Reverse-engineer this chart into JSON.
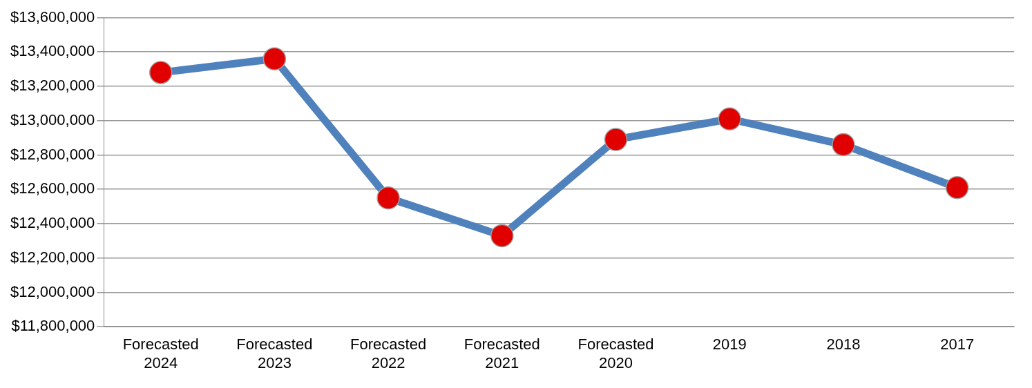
{
  "chart_data": {
    "type": "line",
    "categories": [
      "Forecasted 2024",
      "Forecasted 2023",
      "Forecasted 2022",
      "Forecasted 2021",
      "Forecasted 2020",
      "2019",
      "2018",
      "2017"
    ],
    "series": [
      {
        "color": "#4f81bd",
        "colors": [
          "#e00000",
          "#e00000",
          "#e00000",
          "#e00000",
          "#e00000",
          "#e00000",
          "#e00000",
          "#e00000"
        ],
        "values": [
          13280000,
          13360000,
          12550000,
          12330000,
          12890000,
          13010000,
          12860000,
          12610000
        ]
      }
    ],
    "ylim": [
      11800000,
      13600000
    ],
    "yticks": [
      {
        "value": 11800000,
        "label": "$11,800,000"
      },
      {
        "value": 12000000,
        "label": "$12,000,000"
      },
      {
        "value": 12200000,
        "label": "$12,200,000"
      },
      {
        "value": 12400000,
        "label": "$12,400,000"
      },
      {
        "value": 12600000,
        "label": "$12,600,000"
      },
      {
        "value": 12800000,
        "label": "$12,800,000"
      },
      {
        "value": 13000000,
        "label": "$13,000,000"
      },
      {
        "value": 13200000,
        "label": "$13,200,000"
      },
      {
        "value": 13400000,
        "label": "$13,400,000"
      },
      {
        "value": 13600000,
        "label": "$13,600,000"
      }
    ],
    "grid": "y",
    "legend": false,
    "marker": "circle",
    "line_style": "solid"
  }
}
